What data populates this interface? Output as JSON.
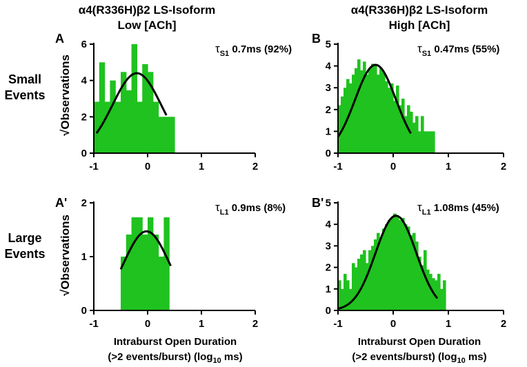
{
  "columns": [
    {
      "title_line1": "α4(R336H)β2 LS-Isoform",
      "title_line2": "Low [ACh]"
    },
    {
      "title_line1": "α4(R336H)β2 LS-Isoform",
      "title_line2": "High [ACh]"
    }
  ],
  "rows": [
    {
      "label_line1": "Small",
      "label_line2": "Events"
    },
    {
      "label_line1": "Large",
      "label_line2": "Events"
    }
  ],
  "ylabel": "√Observations",
  "xlabel_line1": "Intraburst Open Duration",
  "xlabel_line2_pre": "(>2 events/burst) (log",
  "xlabel_line2_sub": "10",
  "xlabel_line2_post": " ms)",
  "colors": {
    "bars": "#1fc21f",
    "fit": "#000000",
    "axis": "#000000"
  },
  "chart_data": [
    {
      "type": "bar",
      "panel_label": "A",
      "tau_symbol": "τ",
      "tau_sub": "S1",
      "tau_text": " 0.7ms (92%)",
      "xlim": [
        -1,
        2
      ],
      "ylim": [
        0,
        6
      ],
      "xticks": [
        -1,
        0,
        1,
        2
      ],
      "xtick_labels": [
        "-1",
        "0",
        "1",
        "2"
      ],
      "yticks": [
        0,
        2,
        4,
        6
      ],
      "ytick_labels": [
        "0",
        "2",
        "4",
        "6"
      ],
      "bin_width": 0.1,
      "bins_x": [
        -0.95,
        -0.85,
        -0.75,
        -0.65,
        -0.55,
        -0.45,
        -0.35,
        -0.25,
        -0.15,
        -0.05,
        0.05,
        0.15,
        0.25,
        0.35,
        0.45
      ],
      "bins_y": [
        2.83,
        5.0,
        2.83,
        4.0,
        2.83,
        4.47,
        3.46,
        6.0,
        2.83,
        4.9,
        4.47,
        2.83,
        2.0,
        2.0,
        2.0
      ],
      "fit": {
        "amplitude": 4.4,
        "mu": -0.2,
        "sigma": 0.45,
        "x_range": [
          -0.95,
          0.35
        ]
      }
    },
    {
      "type": "bar",
      "panel_label": "B",
      "tau_symbol": "τ",
      "tau_sub": "S1",
      "tau_text": " 0.47ms (55%)",
      "xlim": [
        -1,
        2
      ],
      "ylim": [
        0,
        5
      ],
      "xticks": [
        -1,
        0,
        1,
        2
      ],
      "xtick_labels": [
        "-1",
        "0",
        "1",
        "2"
      ],
      "yticks": [
        0,
        1,
        2,
        3,
        4,
        5
      ],
      "ytick_labels": [
        "0",
        "1",
        "2",
        "3",
        "4",
        "5"
      ],
      "bin_width": 0.05,
      "bins_x": [
        -0.975,
        -0.925,
        -0.875,
        -0.825,
        -0.775,
        -0.725,
        -0.675,
        -0.625,
        -0.575,
        -0.525,
        -0.475,
        -0.425,
        -0.375,
        -0.325,
        -0.275,
        -0.225,
        -0.175,
        -0.125,
        -0.075,
        -0.025,
        0.025,
        0.075,
        0.125,
        0.175,
        0.225,
        0.275,
        0.325,
        0.375,
        0.425,
        0.475,
        0.525,
        0.575,
        0.625,
        0.675,
        0.725
      ],
      "bins_y": [
        2.2,
        2.6,
        3.0,
        3.4,
        3.2,
        3.6,
        3.9,
        4.3,
        3.8,
        4.2,
        3.6,
        3.9,
        4.1,
        4.0,
        3.6,
        3.9,
        3.7,
        3.3,
        3.0,
        3.2,
        2.4,
        3.1,
        2.2,
        2.5,
        1.7,
        2.2,
        1.9,
        1.4,
        1.7,
        1.0,
        1.7,
        1.0,
        1.0,
        1.0,
        1.0
      ],
      "fit": {
        "amplitude": 4.05,
        "mu": -0.32,
        "sigma": 0.37,
        "x_range": [
          -1.0,
          0.32
        ]
      }
    },
    {
      "type": "bar",
      "panel_label": "A'",
      "tau_symbol": "τ",
      "tau_sub": "L1",
      "tau_text": " 0.9ms (8%)",
      "xlim": [
        -1,
        2
      ],
      "ylim": [
        0,
        2
      ],
      "xticks": [
        -1,
        0,
        1,
        2
      ],
      "xtick_labels": [
        "-1",
        "0",
        "1",
        "2"
      ],
      "yticks": [
        0,
        1,
        2
      ],
      "ytick_labels": [
        "0",
        "1",
        "2"
      ],
      "bin_width": 0.1,
      "bins_x": [
        -0.45,
        -0.35,
        -0.25,
        -0.15,
        -0.05,
        0.05,
        0.15,
        0.25,
        0.35,
        0.45
      ],
      "bins_y": [
        1.0,
        1.41,
        1.73,
        1.73,
        1.41,
        1.73,
        1.41,
        1.0,
        1.73,
        0.0
      ],
      "fit": {
        "amplitude": 1.47,
        "mu": -0.02,
        "sigma": 0.42,
        "x_range": [
          -0.5,
          0.43
        ]
      }
    },
    {
      "type": "bar",
      "panel_label": "B'",
      "tau_symbol": "τ",
      "tau_sub": "L1",
      "tau_text": " 1.08ms (45%)",
      "xlim": [
        -1,
        2
      ],
      "ylim": [
        0,
        5
      ],
      "xticks": [
        -1,
        0,
        1,
        2
      ],
      "xtick_labels": [
        "-1",
        "0",
        "1",
        "2"
      ],
      "yticks": [
        0,
        1,
        2,
        3,
        4,
        5
      ],
      "ytick_labels": [
        "0",
        "1",
        "2",
        "3",
        "4",
        "5"
      ],
      "bin_width": 0.05,
      "bins_x": [
        -0.975,
        -0.925,
        -0.875,
        -0.825,
        -0.775,
        -0.725,
        -0.675,
        -0.625,
        -0.575,
        -0.525,
        -0.475,
        -0.425,
        -0.375,
        -0.325,
        -0.275,
        -0.225,
        -0.175,
        -0.125,
        -0.075,
        -0.025,
        0.025,
        0.075,
        0.125,
        0.175,
        0.225,
        0.275,
        0.325,
        0.375,
        0.425,
        0.475,
        0.525,
        0.575,
        0.625,
        0.675,
        0.725,
        0.775,
        0.825,
        0.875,
        0.925
      ],
      "bins_y": [
        1.4,
        1.0,
        1.7,
        1.4,
        1.0,
        2.2,
        2.0,
        2.4,
        2.6,
        2.8,
        2.2,
        2.8,
        3.0,
        3.3,
        3.6,
        3.4,
        3.8,
        4.0,
        4.2,
        4.3,
        4.5,
        4.4,
        4.2,
        4.3,
        4.0,
        3.9,
        3.5,
        3.6,
        3.2,
        2.5,
        2.1,
        2.8,
        1.9,
        1.7,
        1.5,
        1.4,
        1.7,
        1.0,
        1.4
      ],
      "fit": {
        "amplitude": 4.4,
        "mu": 0.05,
        "sigma": 0.37,
        "x_range": [
          -1.0,
          0.8
        ]
      }
    }
  ]
}
